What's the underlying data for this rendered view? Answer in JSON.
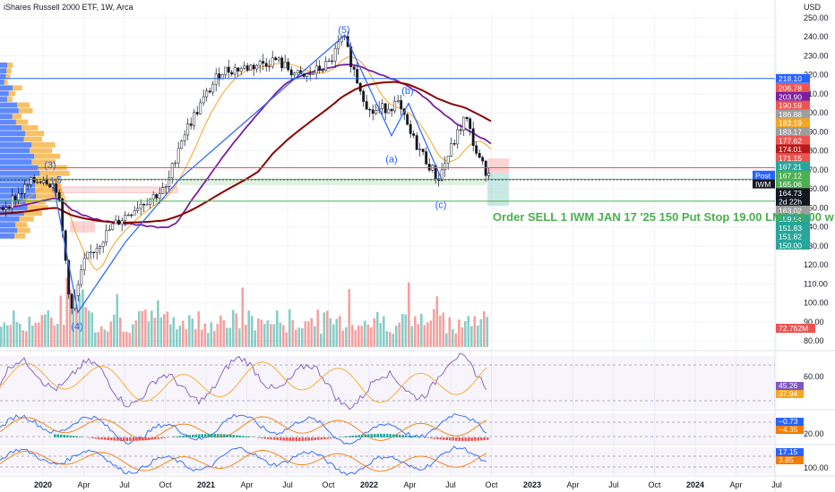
{
  "header": {
    "title": "iShares Russell 2000 ETF, 1W, Arca",
    "currency": "USD"
  },
  "colors": {
    "up": "#26a69a",
    "down": "#ef5350",
    "wave": "#2962ff",
    "sma_orange": "#f5a623",
    "sma_purple": "#7b1fa2",
    "sma_maroon": "#8b0000",
    "green_line": "#4caf50",
    "red_line": "#ef5350",
    "blue_line": "#2962ff"
  },
  "chart_data": {
    "type": "candlestick",
    "ylim": [
      80,
      255
    ],
    "y_ticks": [
      80,
      90,
      100,
      110,
      120,
      130,
      140,
      150,
      160,
      170,
      180,
      190,
      200,
      210,
      220,
      230,
      240,
      250
    ],
    "x_labels": [
      "2020",
      "Apr",
      "Jul",
      "Oct",
      "2021",
      "Apr",
      "Jul",
      "Oct",
      "2022",
      "Apr",
      "Jul",
      "Oct",
      "2023",
      "Apr",
      "Jul",
      "Oct",
      "2024",
      "Apr",
      "Jul"
    ],
    "price_path": [
      [
        "2019-10",
        150
      ],
      [
        "2019-12",
        163
      ],
      [
        "2020-01",
        166
      ],
      [
        "2020-02",
        160
      ],
      [
        "2020-03",
        95
      ],
      [
        "2020-04",
        122
      ],
      [
        "2020-06",
        140
      ],
      [
        "2020-08",
        152
      ],
      [
        "2020-10",
        160
      ],
      [
        "2020-11",
        185
      ],
      [
        "2020-12",
        198
      ],
      [
        "2021-02",
        222
      ],
      [
        "2021-04",
        224
      ],
      [
        "2021-06",
        228
      ],
      [
        "2021-08",
        218
      ],
      [
        "2021-10",
        226
      ],
      [
        "2021-11",
        240
      ],
      [
        "2021-12",
        218
      ],
      [
        "2022-01",
        200
      ],
      [
        "2022-03",
        205
      ],
      [
        "2022-04",
        188
      ],
      [
        "2022-06",
        165
      ],
      [
        "2022-07",
        182
      ],
      [
        "2022-08",
        198
      ],
      [
        "2022-09",
        175
      ],
      [
        "2022-10",
        165
      ]
    ],
    "waves": [
      {
        "label": "(5)",
        "x": "2021-11",
        "price": 242
      },
      {
        "label": "(b)",
        "x": "2022-03",
        "price": 210
      },
      {
        "label": "(a)",
        "x": "2022-03",
        "price": 174
      },
      {
        "label": "(c)",
        "x": "2022-09",
        "price": 150
      },
      {
        "label": "(3)",
        "x": "2019-12",
        "price": 171
      },
      {
        "label": "5",
        "x": "2019-12",
        "price": 163
      },
      {
        "label": "(4)",
        "x": "2020-03",
        "price": 86
      }
    ],
    "horizontal_levels": [
      {
        "price": 218.1,
        "color": "#2962ff"
      },
      {
        "price": 171.15,
        "color": "#ef5350"
      },
      {
        "price": 165.06,
        "color": "#4caf50"
      },
      {
        "price": 153.5,
        "color": "#4caf50"
      }
    ],
    "price_tags": [
      {
        "value": "218.10",
        "price": 218.1,
        "color": "#2962ff"
      },
      {
        "value": "206.78",
        "price": 213.3,
        "color": "#ef5350"
      },
      {
        "value": "203.90",
        "price": 208.6,
        "color": "#7b1fa2"
      },
      {
        "value": "190.59",
        "price": 204.0,
        "color": "#ef5350"
      },
      {
        "value": "186.88",
        "price": 199.4,
        "color": "#9e9e9e"
      },
      {
        "value": "183.19",
        "price": 194.8,
        "color": "#f5a623"
      },
      {
        "value": "183.17",
        "price": 190.2,
        "color": "#9e9e9e"
      },
      {
        "value": "177.62",
        "price": 185.6,
        "color": "#ef5350"
      },
      {
        "value": "174.01",
        "price": 181.0,
        "color": "#b71c1c"
      },
      {
        "value": "171.15",
        "price": 176.4,
        "color": "#ef5350"
      },
      {
        "value": "167.21",
        "price": 171.8,
        "color": "#26a69a"
      },
      {
        "value": "167.12",
        "price": 167.2,
        "color": "#4caf50"
      },
      {
        "value": "165.06",
        "price": 162.6,
        "color": "#4caf50"
      },
      {
        "value": "164.73",
        "price": 158.0,
        "color": "#131722"
      },
      {
        "value": "2d 22h",
        "price": 153.4,
        "color": "#131722"
      },
      {
        "value": "163.02",
        "price": 148.8,
        "color": "#9e9e9e"
      },
      {
        "value": "159.64",
        "price": 144.2,
        "color": "#26a69a"
      },
      {
        "value": "151.83",
        "price": 139.6,
        "color": "#26a69a"
      },
      {
        "value": "151.82",
        "price": 135.0,
        "color": "#26a69a"
      },
      {
        "value": "150.00",
        "price": 130.4,
        "color": "#26a69a"
      }
    ],
    "side_tags": [
      "Post",
      "IWM"
    ],
    "volume_tag": "72.762M",
    "rsi": {
      "ticks": [
        "60.00"
      ],
      "values": [
        "45.26",
        "37.94"
      ]
    },
    "macd": {
      "ticks": [
        "20.00"
      ],
      "values": [
        "−0.73",
        "−4.35"
      ]
    },
    "stoch": {
      "ticks": [
        "100.00"
      ],
      "values": [
        "17.15",
        "3.85"
      ]
    }
  },
  "order_text": "Order SELL 1 IWM JAN 17 '25 150 Put Stop 19.00 LMT 19.00 w"
}
